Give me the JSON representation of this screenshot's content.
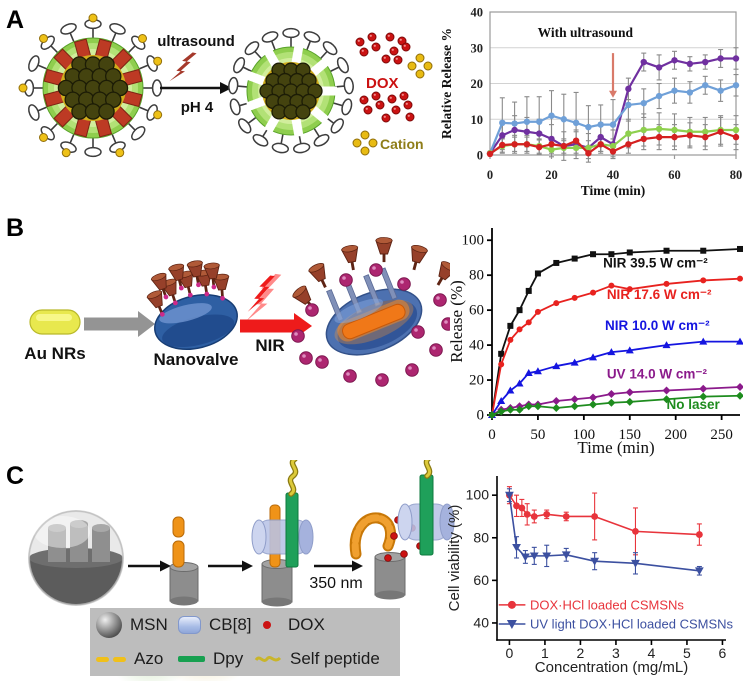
{
  "accent_colors": {
    "dox_red": "#cb1212",
    "cation_yellow": "#8f7d18",
    "nir_red": "#ee1b1b"
  },
  "panels": {
    "a": {
      "label": "A",
      "arrow_top_label": "ultrasound",
      "arrow_bottom_label": "pH 4",
      "dox_label": "DOX",
      "cation_label": "Cation"
    },
    "b": {
      "label": "B",
      "aunrs_label": "Au NRs",
      "nanovalve_label": "Nanovalve",
      "nir_label": "NIR"
    },
    "c": {
      "label": "C",
      "arrow_label": "350 nm",
      "legend": {
        "items": [
          {
            "icon": "msn-sphere-icon",
            "label": "MSN"
          },
          {
            "icon": "cb8-barrel-icon",
            "label": "CB[8]"
          },
          {
            "icon": "dox-dot-icon",
            "label": "DOX"
          },
          {
            "icon": "azo-dashes-icon",
            "label": "Azo"
          },
          {
            "icon": "dpy-bar-icon",
            "label": "Dpy"
          },
          {
            "icon": "peptide-wave-icon",
            "label": "Self peptide"
          }
        ]
      }
    }
  },
  "chart_data": [
    {
      "id": "ultrasound-release",
      "type": "line",
      "title": "",
      "xlabel": "Time (min)",
      "ylabel": "Relative Release %",
      "xlim": [
        0,
        80
      ],
      "ylim": [
        0,
        40
      ],
      "xticks": [
        0,
        20,
        40,
        60,
        80
      ],
      "yticks": [
        0,
        10,
        20,
        30,
        40
      ],
      "grid": true,
      "legend_position": "none",
      "annotation": {
        "text": "With ultrasound",
        "x": 31,
        "y": 33,
        "color": "#d97a6a",
        "arrow": {
          "x": 40,
          "y1": 28.5,
          "y2": 16
        }
      },
      "err_color": "#8a8a8a",
      "x": [
        0,
        4,
        8,
        12,
        16,
        20,
        24,
        28,
        32,
        36,
        40,
        45,
        50,
        55,
        60,
        65,
        70,
        75,
        80
      ],
      "series": [
        {
          "name": "purple",
          "color": "#7030a0",
          "marker": "circle",
          "values": [
            0.5,
            5.5,
            7,
            6.5,
            6,
            4.5,
            2.5,
            3,
            2,
            5,
            3,
            18.5,
            26,
            24.5,
            26.5,
            25.5,
            26,
            27,
            27
          ],
          "err": [
            0.3,
            4,
            4,
            4,
            4,
            4,
            4,
            4,
            4,
            4,
            4,
            3,
            2.5,
            3.5,
            2.5,
            2,
            2,
            2.5,
            3
          ]
        },
        {
          "name": "light-blue",
          "color": "#6fa0d8",
          "marker": "circle",
          "values": [
            0.5,
            9,
            8.8,
            9.3,
            9.3,
            11,
            10,
            9,
            7.8,
            8.5,
            8.5,
            14,
            14.5,
            16.5,
            18,
            17.5,
            19.5,
            18,
            19.5
          ],
          "err": [
            0.3,
            7,
            6,
            7,
            7,
            7,
            7,
            8.5,
            6,
            5.5,
            7,
            4.5,
            4,
            3.5,
            3.5,
            3,
            2.5,
            3,
            3
          ]
        },
        {
          "name": "green",
          "color": "#8ed04e",
          "marker": "circle",
          "values": [
            0.5,
            2.5,
            3,
            3,
            2.5,
            1.5,
            2,
            2,
            2,
            3,
            2.5,
            6,
            7,
            7.3,
            7,
            6.5,
            6.5,
            7,
            7
          ],
          "err": [
            0.3,
            2,
            2.5,
            2.5,
            2,
            2,
            2,
            2,
            2,
            2.5,
            2,
            4,
            4.5,
            4.5,
            4.5,
            4,
            4,
            4,
            4
          ]
        },
        {
          "name": "red",
          "color": "#d42020",
          "marker": "circle",
          "values": [
            0.3,
            2.8,
            3,
            3,
            2.2,
            3,
            2.5,
            4,
            0.5,
            3,
            1,
            3,
            4.5,
            5,
            5,
            5.5,
            5,
            6.5,
            5
          ],
          "err": [
            0.2,
            2,
            2,
            2,
            2,
            2,
            2,
            2.5,
            1.5,
            2,
            1.5,
            2.5,
            3,
            3.5,
            3.5,
            3.5,
            3.5,
            4,
            3.5
          ]
        }
      ]
    },
    {
      "id": "nir-release",
      "type": "line",
      "title": "",
      "xlabel": "Time (min)",
      "ylabel": "Release (%)",
      "xlim": [
        0,
        270
      ],
      "ylim": [
        0,
        107
      ],
      "xticks": [
        0,
        50,
        100,
        150,
        200,
        250
      ],
      "yticks": [
        0,
        20,
        40,
        60,
        80,
        100
      ],
      "grid": false,
      "legend_position": "inline-labels",
      "x": [
        0,
        10,
        20,
        30,
        40,
        50,
        70,
        90,
        110,
        130,
        150,
        190,
        230,
        270
      ],
      "series": [
        {
          "name": "NIR 39.5 W cm⁻²",
          "color": "#111111",
          "marker": "square",
          "values": [
            0,
            35,
            51,
            60,
            71,
            81,
            87,
            89.5,
            92,
            92,
            93,
            94,
            94,
            95
          ],
          "label": {
            "x": 121,
            "y": 84.5
          }
        },
        {
          "name": "NIR 17.6 W cm⁻²",
          "color": "#e8221f",
          "marker": "circle",
          "values": [
            0,
            29,
            43,
            49,
            53,
            59,
            64,
            67,
            70,
            74,
            72,
            75,
            77,
            78
          ],
          "label": {
            "x": 125,
            "y": 66.5
          }
        },
        {
          "name": "NIR 10.0 W cm⁻²",
          "color": "#1515e0",
          "marker": "triangle-up",
          "values": [
            0,
            8,
            14,
            18,
            24,
            25,
            28,
            30,
            33,
            36,
            37,
            40,
            42,
            42
          ],
          "label": {
            "x": 123,
            "y": 48.5
          }
        },
        {
          "name": "UV 14.0 W cm⁻²",
          "color": "#8b1a8b",
          "marker": "diamond",
          "values": [
            0,
            3,
            4,
            5,
            6,
            6,
            8,
            9,
            10,
            12,
            13,
            14,
            15,
            16
          ],
          "label": {
            "x": 125,
            "y": 21
          }
        },
        {
          "name": "No laser",
          "color": "#1e8c1e",
          "marker": "diamond",
          "values": [
            0,
            2,
            3,
            3,
            5,
            5,
            4,
            5,
            6,
            7,
            7.5,
            9,
            10.5,
            11
          ],
          "label": {
            "x": 190,
            "y": 3.5
          }
        }
      ]
    },
    {
      "id": "cell-viability",
      "type": "line",
      "title": "",
      "xlabel": "Concentration (mg/mL)",
      "ylabel": "Cell viability (%)",
      "xlim": [
        -0.35,
        6.1
      ],
      "ylim": [
        32,
        109
      ],
      "xticks": [
        0,
        1,
        2,
        3,
        4,
        5,
        6
      ],
      "yticks": [
        40,
        60,
        80,
        100
      ],
      "grid": false,
      "legend_position": "inside-lower-left",
      "legend": {
        "x_line": [
          -0.3,
          0.45
        ],
        "x_marker": 0.07,
        "x_text": 0.58,
        "ys": [
          48.5,
          39.5
        ]
      },
      "series": [
        {
          "name": "DOX·HCl loaded CSMSNs",
          "color": "#e8343c",
          "marker": "circle",
          "x": [
            0,
            0.2,
            0.35,
            0.5,
            0.7,
            1.05,
            1.6,
            2.4,
            3.55,
            5.35
          ],
          "values": [
            100,
            95,
            94,
            91,
            90,
            91,
            90,
            90,
            83,
            81.5
          ],
          "err": [
            4,
            5,
            4,
            5,
            3,
            2,
            2,
            11,
            11,
            5
          ]
        },
        {
          "name": "UV light DOX·HCl loaded CSMSNs",
          "color": "#3c50a0",
          "marker": "triangle-down",
          "x": [
            0,
            0.2,
            0.45,
            0.7,
            1.05,
            1.6,
            2.4,
            3.55,
            5.35
          ],
          "values": [
            100,
            75.5,
            71,
            71.5,
            71.5,
            72,
            69,
            68,
            64.5
          ],
          "err": [
            3,
            5,
            3,
            4,
            5,
            3,
            4,
            5,
            2
          ]
        }
      ]
    }
  ]
}
